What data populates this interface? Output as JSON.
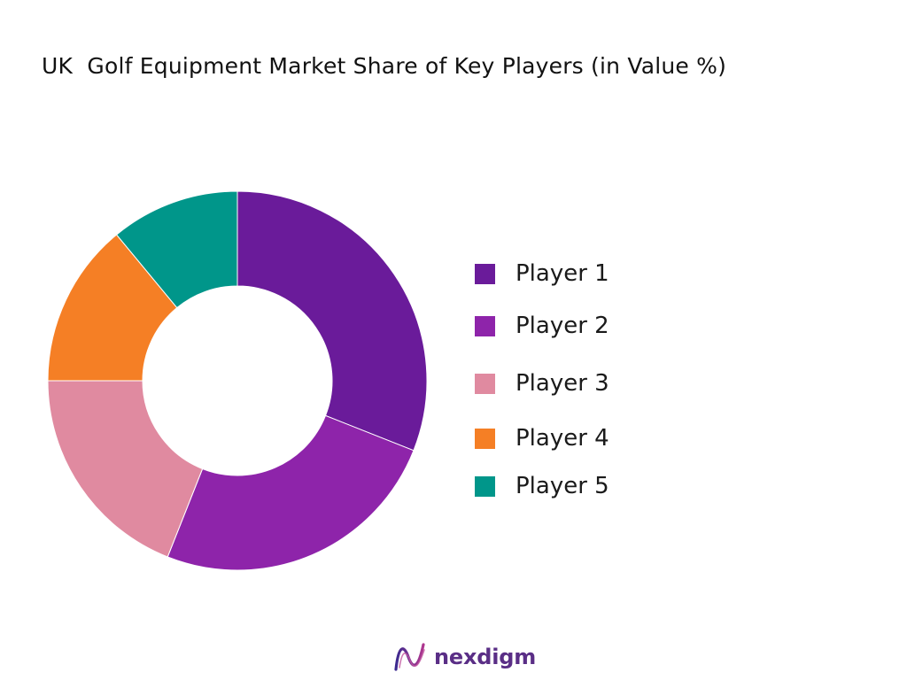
{
  "chart_data": {
    "type": "pie",
    "variant": "donut",
    "title": "UK  Golf Equipment Market Share of Key Players (in Value %)",
    "categories": [
      "Player 1",
      "Player 2",
      "Player 3",
      "Player 4",
      "Player 5"
    ],
    "values": [
      31,
      25,
      19,
      14,
      11
    ],
    "colors": [
      "#6a1b9a",
      "#8e24aa",
      "#e08aa0",
      "#f57f25",
      "#00968a"
    ],
    "legend_position": "right"
  },
  "brand": {
    "name": "nexdigm",
    "logo_icon": "nexdigm-wave-logo"
  }
}
